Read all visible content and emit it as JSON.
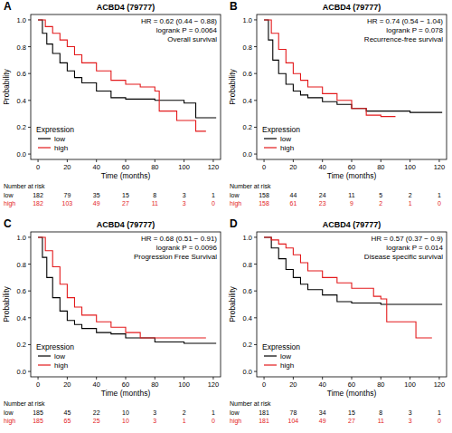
{
  "chart_data": [
    {
      "type": "line",
      "line_style": "step",
      "panel_label": "A",
      "title": "ACBD4 (79777)",
      "annotations": [
        "HR = 0.62 (0.44 − 0.88)",
        "logrank P = 0.0064",
        "Overall survival"
      ],
      "x_label": "Time (months)",
      "y_label": "Probability",
      "legend_title": "Expression",
      "legend": "bottom-left",
      "xlim": [
        -5,
        125
      ],
      "ylim": [
        -0.04,
        1.04
      ],
      "xticks": [
        0,
        20,
        40,
        60,
        80,
        100,
        120
      ],
      "yticks": [
        {
          "value": 0,
          "label": "0.0"
        },
        {
          "value": 0.2,
          "label": "0.2"
        },
        {
          "value": 0.4,
          "label": "0.4"
        },
        {
          "value": 0.6,
          "label": "0.6"
        },
        {
          "value": 0.8,
          "label": "0.8"
        },
        {
          "value": 1,
          "label": "1.0"
        }
      ],
      "series": [
        {
          "name": "low",
          "color": "#000000",
          "x": [
            0,
            3,
            6,
            10,
            15,
            20,
            25,
            30,
            40,
            50,
            60,
            80,
            100,
            108,
            122
          ],
          "values": [
            1,
            0.9,
            0.82,
            0.75,
            0.68,
            0.62,
            0.57,
            0.53,
            0.47,
            0.42,
            0.41,
            0.4,
            0.38,
            0.27,
            0.27
          ]
        },
        {
          "name": "high",
          "color": "#e31a1c",
          "x": [
            0,
            5,
            10,
            15,
            20,
            25,
            30,
            40,
            50,
            60,
            70,
            80,
            83,
            95,
            108,
            115
          ],
          "values": [
            1,
            0.95,
            0.9,
            0.85,
            0.8,
            0.74,
            0.68,
            0.62,
            0.55,
            0.52,
            0.5,
            0.47,
            0.32,
            0.25,
            0.17,
            0.17
          ]
        }
      ],
      "risk_table": {
        "title": "Number at risk",
        "rows": [
          {
            "name": "low",
            "color": "#000000",
            "values": [
              182,
              79,
              35,
              15,
              8,
              3,
              1
            ]
          },
          {
            "name": "high",
            "color": "#e31a1c",
            "values": [
              182,
              103,
              49,
              27,
              11,
              3,
              0
            ]
          }
        ]
      }
    },
    {
      "type": "line",
      "line_style": "step",
      "panel_label": "B",
      "title": "ACBD4 (79777)",
      "annotations": [
        "HR = 0.74 (0.54 − 1.04)",
        "logrank P = 0.078",
        "Recurrence-free survival"
      ],
      "x_label": "Time (months)",
      "y_label": "Probability",
      "legend_title": "Expression",
      "legend": "bottom-left",
      "xlim": [
        -5,
        125
      ],
      "ylim": [
        -0.04,
        1.04
      ],
      "xticks": [
        0,
        20,
        40,
        60,
        80,
        100,
        120
      ],
      "yticks": [
        {
          "value": 0,
          "label": "0.0"
        },
        {
          "value": 0.2,
          "label": "0.2"
        },
        {
          "value": 0.4,
          "label": "0.4"
        },
        {
          "value": 0.6,
          "label": "0.6"
        },
        {
          "value": 0.8,
          "label": "0.8"
        },
        {
          "value": 1,
          "label": "1.0"
        }
      ],
      "series": [
        {
          "name": "low",
          "color": "#000000",
          "x": [
            0,
            3,
            6,
            10,
            15,
            20,
            25,
            30,
            40,
            50,
            60,
            70,
            100,
            122
          ],
          "values": [
            1,
            0.85,
            0.7,
            0.6,
            0.52,
            0.47,
            0.44,
            0.42,
            0.39,
            0.37,
            0.34,
            0.32,
            0.31,
            0.31
          ]
        },
        {
          "name": "high",
          "color": "#e31a1c",
          "x": [
            0,
            5,
            10,
            15,
            20,
            25,
            30,
            40,
            50,
            60,
            70,
            80,
            90
          ],
          "values": [
            1,
            0.9,
            0.78,
            0.68,
            0.6,
            0.55,
            0.5,
            0.45,
            0.4,
            0.34,
            0.29,
            0.28,
            0.28
          ]
        }
      ],
      "risk_table": {
        "title": "Number at risk",
        "rows": [
          {
            "name": "low",
            "color": "#000000",
            "values": [
              158,
              44,
              24,
              11,
              5,
              2,
              1
            ]
          },
          {
            "name": "high",
            "color": "#e31a1c",
            "values": [
              158,
              61,
              23,
              9,
              2,
              1,
              0
            ]
          }
        ]
      }
    },
    {
      "type": "line",
      "line_style": "step",
      "panel_label": "C",
      "title": "ACBD4 (79777)",
      "annotations": [
        "HR = 0.68 (0.51 − 0.91)",
        "logrank P = 0.0096",
        "Progression Free Survival"
      ],
      "x_label": "Time (months)",
      "y_label": "Probability",
      "legend_title": "Expression",
      "legend": "bottom-left",
      "xlim": [
        -5,
        125
      ],
      "ylim": [
        -0.04,
        1.04
      ],
      "xticks": [
        0,
        20,
        40,
        60,
        80,
        100,
        120
      ],
      "yticks": [
        {
          "value": 0,
          "label": "0.0"
        },
        {
          "value": 0.2,
          "label": "0.2"
        },
        {
          "value": 0.4,
          "label": "0.4"
        },
        {
          "value": 0.6,
          "label": "0.6"
        },
        {
          "value": 0.8,
          "label": "0.8"
        },
        {
          "value": 1,
          "label": "1.0"
        }
      ],
      "series": [
        {
          "name": "low",
          "color": "#000000",
          "x": [
            0,
            3,
            6,
            10,
            15,
            20,
            25,
            30,
            40,
            50,
            60,
            80,
            100,
            122
          ],
          "values": [
            1,
            0.85,
            0.7,
            0.55,
            0.45,
            0.38,
            0.35,
            0.32,
            0.29,
            0.28,
            0.25,
            0.22,
            0.21,
            0.21
          ]
        },
        {
          "name": "high",
          "color": "#e31a1c",
          "x": [
            0,
            5,
            10,
            15,
            20,
            25,
            30,
            40,
            50,
            60,
            70,
            90,
            115
          ],
          "values": [
            1,
            0.9,
            0.78,
            0.65,
            0.55,
            0.48,
            0.42,
            0.37,
            0.33,
            0.29,
            0.25,
            0.25,
            0.25
          ]
        }
      ],
      "risk_table": {
        "title": "Number at risk",
        "rows": [
          {
            "name": "low",
            "color": "#000000",
            "values": [
              185,
              45,
              22,
              10,
              3,
              2,
              1
            ]
          },
          {
            "name": "high",
            "color": "#e31a1c",
            "values": [
              185,
              65,
              25,
              10,
              3,
              1,
              0
            ]
          }
        ]
      }
    },
    {
      "type": "line",
      "line_style": "step",
      "panel_label": "D",
      "title": "ACBD4 (79777)",
      "annotations": [
        "HR = 0.57 (0.37 − 0.9)",
        "logrank P = 0.014",
        "Disease specific survival"
      ],
      "x_label": "Time (months)",
      "y_label": "Probability",
      "legend_title": "Expression",
      "legend": "bottom-left",
      "xlim": [
        -5,
        125
      ],
      "ylim": [
        -0.04,
        1.04
      ],
      "xticks": [
        0,
        20,
        40,
        60,
        80,
        100,
        120
      ],
      "yticks": [
        {
          "value": 0,
          "label": "0.0"
        },
        {
          "value": 0.2,
          "label": "0.2"
        },
        {
          "value": 0.4,
          "label": "0.4"
        },
        {
          "value": 0.6,
          "label": "0.6"
        },
        {
          "value": 0.8,
          "label": "0.8"
        },
        {
          "value": 1,
          "label": "1.0"
        }
      ],
      "series": [
        {
          "name": "low",
          "color": "#000000",
          "x": [
            0,
            5,
            10,
            15,
            20,
            25,
            30,
            40,
            50,
            60,
            80,
            100,
            122
          ],
          "values": [
            1,
            0.92,
            0.84,
            0.76,
            0.7,
            0.65,
            0.61,
            0.57,
            0.52,
            0.51,
            0.5,
            0.5,
            0.5
          ]
        },
        {
          "name": "high",
          "color": "#e31a1c",
          "x": [
            0,
            5,
            10,
            15,
            20,
            25,
            30,
            40,
            50,
            60,
            75,
            80,
            84,
            100,
            104,
            115
          ],
          "values": [
            1,
            0.98,
            0.95,
            0.92,
            0.87,
            0.81,
            0.75,
            0.7,
            0.66,
            0.62,
            0.56,
            0.54,
            0.37,
            0.37,
            0.25,
            0.25
          ]
        }
      ],
      "risk_table": {
        "title": "Number at risk",
        "rows": [
          {
            "name": "low",
            "color": "#000000",
            "values": [
              181,
              78,
              34,
              15,
              8,
              3,
              1
            ]
          },
          {
            "name": "high",
            "color": "#e31a1c",
            "values": [
              181,
              104,
              49,
              27,
              11,
              3,
              0
            ]
          }
        ]
      }
    }
  ]
}
